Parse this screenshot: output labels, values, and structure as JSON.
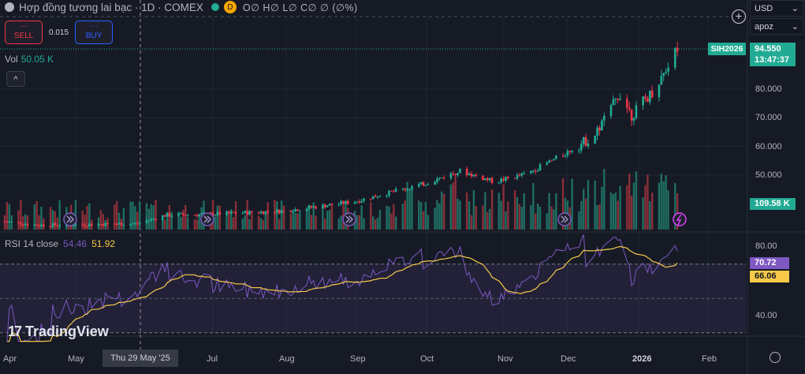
{
  "header": {
    "title": "Hợp đồng tương lai bạc · 1D · COMEX",
    "ohlc": "O∅ H∅ L∅ C∅ ∅ (∅%)",
    "d_badge": "D"
  },
  "trade": {
    "sell_dots": "···",
    "sell_label": "SELL",
    "buy_dots": "···",
    "buy_label": "BUY",
    "spread": "0.015"
  },
  "volume": {
    "label": "Vol",
    "value": "50.05 K"
  },
  "collapse_label": "^",
  "rsi": {
    "label": "RSI 14 close",
    "value1": "54.46",
    "value2": "51.92"
  },
  "branding": {
    "logo_mark": "17",
    "name": "TradingView"
  },
  "right_panel": {
    "currency": "USD",
    "mode": "apoz",
    "plus_label": "+",
    "symbol_tag": "SIH2026",
    "last_price": "94.550",
    "countdown": "13:47:37",
    "volume_tag": "109.58 K",
    "rsi_tag": "70.72",
    "rsi_ma_tag": "66.06"
  },
  "chart_data": {
    "type": "candlestick",
    "price_axis_ticks": [
      "80.000",
      "70.000",
      "60.000",
      "50.000"
    ],
    "rsi_axis_ticks": [
      "80.00",
      "40.00"
    ],
    "x_ticks": [
      "Apr",
      "May",
      "Jul",
      "Aug",
      "Sep",
      "Oct",
      "Nov",
      "Dec",
      "2026",
      "Feb"
    ],
    "crosshair_date": "Thu 29 May '25",
    "colors": {
      "up": "#22ab94",
      "down": "#f23645",
      "rsi": "#7e57c2",
      "rsi_ma": "#f7c948"
    },
    "close_path": [
      [
        "2025-04-01",
        33.8
      ],
      [
        "2025-04-15",
        32.6
      ],
      [
        "2025-05-01",
        32.7
      ],
      [
        "2025-05-29",
        33.1
      ],
      [
        "2025-06-10",
        36.0
      ],
      [
        "2025-07-01",
        36.4
      ],
      [
        "2025-08-01",
        37.5
      ],
      [
        "2025-09-01",
        40.8
      ],
      [
        "2025-10-01",
        46.9
      ],
      [
        "2025-10-17",
        51.5
      ],
      [
        "2025-11-01",
        47.7
      ],
      [
        "2025-11-15",
        50.4
      ],
      [
        "2025-12-01",
        57.1
      ],
      [
        "2025-12-15",
        64.0
      ],
      [
        "2025-12-26",
        78.7
      ],
      [
        "2025-12-31",
        71.0
      ],
      [
        "2026-01-10",
        80.0
      ],
      [
        "2026-01-20",
        94.55
      ]
    ],
    "last_price": 94.55,
    "last_volume": "109.58 K",
    "rsi_last": 70.72,
    "rsi_ma_last": 66.06
  }
}
